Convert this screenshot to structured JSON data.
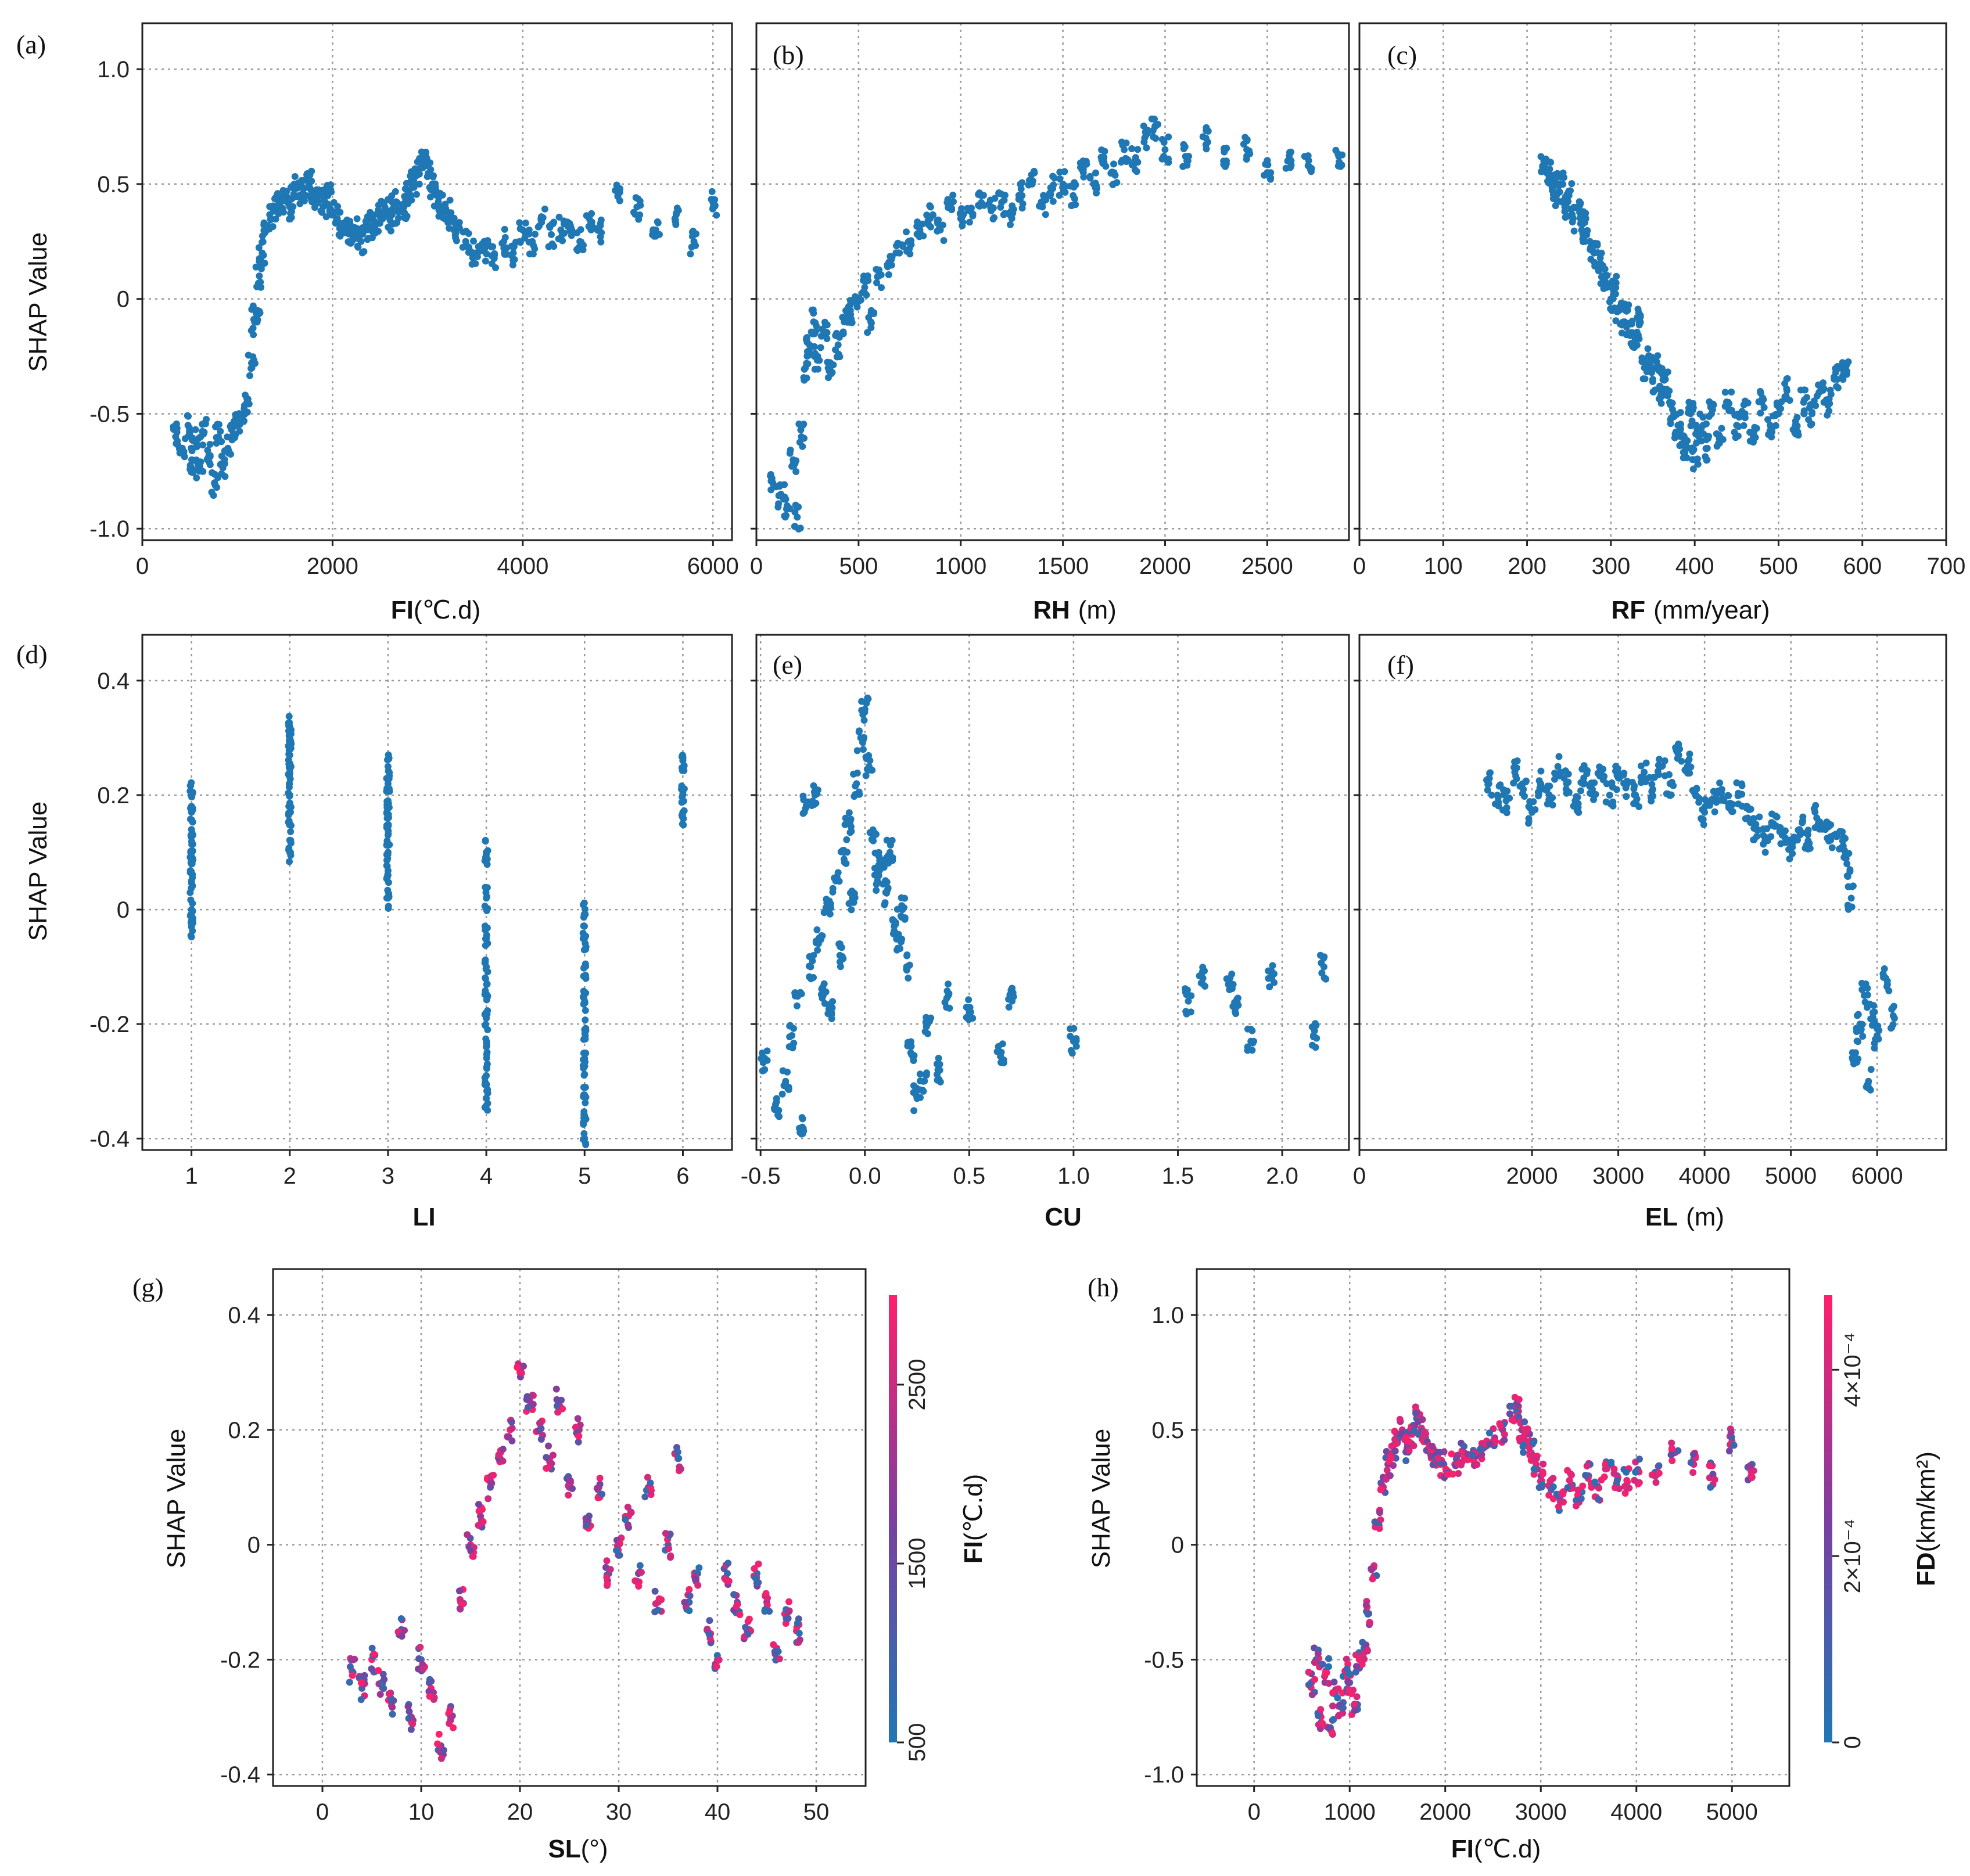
{
  "chart_data": [
    {
      "panel": "(a)",
      "type": "scatter",
      "xlabel_main": "FI",
      "xlabel_unit": "(℃.d)",
      "ylabel": "SHAP Value",
      "xlim": [
        0,
        6200
      ],
      "ylim": [
        -1.05,
        1.2
      ],
      "xticks": [
        0,
        2000,
        4000,
        6000
      ],
      "yticks": [
        1.0,
        0.5,
        0,
        -0.5,
        -1.0
      ],
      "ytick_labels": [
        "1.0",
        "0.5",
        "0",
        "-0.5",
        "-1.0"
      ],
      "color": "#1f77b4",
      "x": [
        350,
        420,
        480,
        520,
        560,
        600,
        650,
        700,
        760,
        800,
        850,
        900,
        950,
        1000,
        1050,
        1100,
        1150,
        1180,
        1200,
        1230,
        1260,
        1300,
        1350,
        1400,
        1450,
        1500,
        1550,
        1600,
        1650,
        1700,
        1750,
        1800,
        1850,
        1900,
        1950,
        2000,
        2050,
        2100,
        2150,
        2200,
        2250,
        2300,
        2350,
        2400,
        2450,
        2500,
        2550,
        2600,
        2650,
        2700,
        2750,
        2800,
        2850,
        2900,
        2950,
        3000,
        3050,
        3100,
        3150,
        3200,
        3250,
        3300,
        3400,
        3500,
        3600,
        3700,
        3800,
        3900,
        4000,
        4100,
        4200,
        4300,
        4400,
        4500,
        4600,
        4700,
        4800,
        5000,
        5200,
        5400,
        5600,
        5800,
        6000
      ],
      "y": [
        -0.6,
        -0.65,
        -0.55,
        -0.7,
        -0.62,
        -0.75,
        -0.58,
        -0.68,
        -0.8,
        -0.6,
        -0.72,
        -0.65,
        -0.6,
        -0.55,
        -0.5,
        -0.45,
        -0.3,
        -0.1,
        -0.05,
        0.1,
        0.2,
        0.3,
        0.35,
        0.4,
        0.42,
        0.45,
        0.4,
        0.5,
        0.45,
        0.48,
        0.5,
        0.45,
        0.42,
        0.4,
        0.45,
        0.38,
        0.35,
        0.32,
        0.3,
        0.28,
        0.3,
        0.25,
        0.3,
        0.35,
        0.32,
        0.38,
        0.4,
        0.35,
        0.42,
        0.38,
        0.4,
        0.45,
        0.5,
        0.55,
        0.6,
        0.58,
        0.5,
        0.45,
        0.4,
        0.38,
        0.35,
        0.3,
        0.25,
        0.2,
        0.22,
        0.18,
        0.25,
        0.2,
        0.3,
        0.25,
        0.35,
        0.28,
        0.3,
        0.32,
        0.25,
        0.35,
        0.3,
        0.45,
        0.4,
        0.3,
        0.35,
        0.25,
        0.42
      ]
    },
    {
      "panel": "(b)",
      "type": "scatter",
      "xlabel_main": "RH",
      "xlabel_unit": "(m)",
      "ylabel": "",
      "xlim": [
        0,
        2900
      ],
      "ylim": [
        -1.05,
        1.2
      ],
      "xticks": [
        0,
        500,
        1000,
        1500,
        2000,
        2500
      ],
      "yticks": [
        1.0,
        0.5,
        0,
        -0.5,
        -1.0
      ],
      "color": "#1f77b4",
      "x": [
        80,
        120,
        150,
        180,
        200,
        220,
        240,
        260,
        280,
        300,
        330,
        360,
        400,
        430,
        460,
        500,
        530,
        560,
        600,
        650,
        700,
        750,
        800,
        850,
        900,
        950,
        1000,
        1050,
        1100,
        1150,
        1200,
        1250,
        1300,
        1350,
        1400,
        1450,
        1500,
        1550,
        1600,
        1650,
        1700,
        1750,
        1800,
        1850,
        1900,
        1950,
        2000,
        2100,
        2200,
        2300,
        2400,
        2500,
        2600,
        2700,
        2850
      ],
      "y": [
        -0.8,
        -0.85,
        -0.9,
        -0.7,
        -0.95,
        -0.6,
        -0.3,
        -0.2,
        -0.1,
        -0.25,
        -0.15,
        -0.3,
        -0.2,
        -0.1,
        -0.05,
        0.0,
        0.05,
        -0.1,
        0.1,
        0.15,
        0.2,
        0.25,
        0.3,
        0.35,
        0.3,
        0.4,
        0.35,
        0.38,
        0.45,
        0.4,
        0.42,
        0.35,
        0.45,
        0.5,
        0.4,
        0.48,
        0.5,
        0.45,
        0.55,
        0.5,
        0.6,
        0.55,
        0.65,
        0.6,
        0.7,
        0.75,
        0.65,
        0.62,
        0.7,
        0.6,
        0.65,
        0.55,
        0.6,
        0.58,
        0.62
      ]
    },
    {
      "panel": "(c)",
      "type": "scatter",
      "xlabel_main": "RF",
      "xlabel_unit": "(mm/year)",
      "ylabel": "",
      "xlim": [
        0,
        700
      ],
      "ylim": [
        -1.05,
        1.2
      ],
      "xticks": [
        0,
        100,
        200,
        300,
        400,
        500,
        600,
        700
      ],
      "yticks": [
        1.0,
        0.5,
        0,
        -0.5,
        -1.0
      ],
      "color": "#1f77b4",
      "x": [
        220,
        225,
        230,
        235,
        240,
        245,
        250,
        255,
        260,
        265,
        270,
        275,
        280,
        285,
        290,
        295,
        300,
        305,
        310,
        315,
        320,
        325,
        330,
        335,
        340,
        345,
        350,
        355,
        360,
        365,
        370,
        375,
        380,
        385,
        390,
        395,
        400,
        405,
        410,
        415,
        420,
        430,
        440,
        450,
        460,
        470,
        480,
        490,
        500,
        510,
        520,
        530,
        540,
        550,
        560,
        570,
        580
      ],
      "y": [
        0.6,
        0.55,
        0.5,
        0.45,
        0.5,
        0.4,
        0.45,
        0.35,
        0.4,
        0.3,
        0.35,
        0.25,
        0.2,
        0.15,
        0.1,
        0.05,
        0.0,
        0.05,
        -0.05,
        -0.1,
        -0.05,
        -0.15,
        -0.2,
        -0.1,
        -0.3,
        -0.25,
        -0.35,
        -0.3,
        -0.4,
        -0.35,
        -0.45,
        -0.5,
        -0.55,
        -0.6,
        -0.65,
        -0.5,
        -0.7,
        -0.6,
        -0.55,
        -0.65,
        -0.5,
        -0.6,
        -0.45,
        -0.55,
        -0.5,
        -0.6,
        -0.45,
        -0.55,
        -0.5,
        -0.4,
        -0.55,
        -0.45,
        -0.5,
        -0.4,
        -0.45,
        -0.35,
        -0.3
      ]
    },
    {
      "panel": "(d)",
      "type": "scatter",
      "xlabel_main": "LI",
      "xlabel_unit": "",
      "ylabel": "SHAP Value",
      "xlim": [
        0.5,
        6.5
      ],
      "ylim": [
        -0.42,
        0.48
      ],
      "xticks": [
        1,
        2,
        3,
        4,
        5,
        6
      ],
      "yticks": [
        0.4,
        0.2,
        0,
        -0.2,
        -0.4
      ],
      "ytick_labels": [
        "0.4",
        "0.2",
        "0",
        "-0.2",
        "-0.4"
      ],
      "color": "#1f77b4",
      "x": [
        1,
        1,
        1,
        1,
        1,
        1,
        1,
        1,
        2,
        2,
        2,
        2,
        2,
        2,
        2,
        3,
        3,
        3,
        3,
        3,
        3,
        3,
        3,
        4,
        4,
        4,
        4,
        4,
        4,
        4,
        4,
        4,
        5,
        5,
        5,
        5,
        5,
        5,
        5,
        5,
        5,
        6,
        6,
        6
      ],
      "y": [
        -0.03,
        0.0,
        0.05,
        0.08,
        0.1,
        0.14,
        0.17,
        0.2,
        0.1,
        0.15,
        0.2,
        0.24,
        0.27,
        0.3,
        0.32,
        0.02,
        0.06,
        0.1,
        0.13,
        0.16,
        0.19,
        0.22,
        0.25,
        -0.33,
        -0.29,
        -0.24,
        -0.19,
        -0.15,
        -0.1,
        -0.05,
        0.02,
        0.1,
        -0.4,
        -0.36,
        -0.31,
        -0.26,
        -0.21,
        -0.16,
        -0.1,
        -0.05,
        -0.01,
        0.17,
        0.21,
        0.26
      ]
    },
    {
      "panel": "(e)",
      "type": "scatter",
      "xlabel_main": "CU",
      "xlabel_unit": "",
      "ylabel": "",
      "xlim": [
        -0.52,
        2.32
      ],
      "ylim": [
        -0.42,
        0.48
      ],
      "xticks": [
        -0.5,
        0.0,
        0.5,
        1.0,
        1.5,
        2.0
      ],
      "yticks": [
        0.4,
        0.2,
        0,
        -0.2,
        -0.4
      ],
      "color": "#1f77b4",
      "x": [
        -0.48,
        -0.42,
        -0.38,
        -0.35,
        -0.32,
        -0.3,
        -0.28,
        -0.26,
        -0.24,
        -0.22,
        -0.2,
        -0.18,
        -0.16,
        -0.14,
        -0.12,
        -0.1,
        -0.08,
        -0.06,
        -0.04,
        -0.02,
        0.0,
        0.02,
        0.04,
        0.06,
        0.08,
        0.1,
        0.12,
        0.14,
        0.16,
        0.18,
        0.2,
        0.22,
        0.25,
        0.28,
        0.3,
        0.35,
        0.4,
        0.5,
        0.65,
        0.7,
        1.0,
        1.55,
        1.62,
        1.75,
        1.78,
        1.85,
        1.95,
        2.15,
        2.2
      ],
      "y": [
        -0.26,
        -0.35,
        -0.3,
        -0.22,
        -0.15,
        -0.38,
        0.18,
        -0.1,
        0.2,
        -0.05,
        -0.15,
        0.0,
        -0.18,
        0.05,
        -0.08,
        0.1,
        0.15,
        0.02,
        0.22,
        0.3,
        0.35,
        0.25,
        0.12,
        0.05,
        0.08,
        0.03,
        0.1,
        -0.02,
        -0.05,
        0.0,
        -0.1,
        -0.25,
        -0.33,
        -0.3,
        -0.2,
        -0.28,
        -0.15,
        -0.18,
        -0.25,
        -0.15,
        -0.23,
        -0.16,
        -0.12,
        -0.12,
        -0.17,
        -0.23,
        -0.12,
        -0.22,
        -0.1
      ]
    },
    {
      "panel": "(f)",
      "type": "scatter",
      "xlabel_main": "EL",
      "xlabel_unit": "(m)",
      "ylabel": "",
      "xlim": [
        0,
        6800
      ],
      "ylim": [
        -0.42,
        0.48
      ],
      "xticks": [
        0,
        2000,
        3000,
        4000,
        5000,
        6000
      ],
      "yticks": [
        0.4,
        0.2,
        0,
        -0.2,
        -0.4
      ],
      "color": "#1f77b4",
      "x": [
        1500,
        1600,
        1700,
        1800,
        1900,
        2000,
        2100,
        2200,
        2300,
        2400,
        2500,
        2600,
        2700,
        2800,
        2900,
        3000,
        3100,
        3200,
        3300,
        3400,
        3500,
        3600,
        3700,
        3800,
        3900,
        4000,
        4100,
        4200,
        4300,
        4400,
        4500,
        4600,
        4700,
        4800,
        4900,
        5000,
        5100,
        5200,
        5300,
        5400,
        5500,
        5600,
        5650,
        5700,
        5750,
        5800,
        5850,
        5900,
        5950,
        6000,
        6100,
        6200
      ],
      "y": [
        0.22,
        0.2,
        0.19,
        0.24,
        0.21,
        0.17,
        0.22,
        0.2,
        0.25,
        0.22,
        0.19,
        0.23,
        0.21,
        0.24,
        0.2,
        0.23,
        0.22,
        0.2,
        0.24,
        0.21,
        0.25,
        0.22,
        0.27,
        0.25,
        0.2,
        0.17,
        0.19,
        0.21,
        0.18,
        0.2,
        0.16,
        0.14,
        0.12,
        0.15,
        0.13,
        0.11,
        0.14,
        0.12,
        0.16,
        0.14,
        0.13,
        0.12,
        0.08,
        0.02,
        -0.25,
        -0.2,
        -0.15,
        -0.3,
        -0.18,
        -0.22,
        -0.12,
        -0.19
      ]
    },
    {
      "panel": "(g)",
      "type": "scatter",
      "xlabel_main": "SL",
      "xlabel_unit": "(°)",
      "ylabel": "SHAP Value",
      "xlim": [
        -5,
        55
      ],
      "ylim": [
        -0.42,
        0.48
      ],
      "xticks": [
        0,
        10,
        20,
        30,
        40,
        50
      ],
      "yticks": [
        0.4,
        0.2,
        0,
        -0.2,
        -0.4
      ],
      "ytick_labels": [
        "0.4",
        "0.2",
        "0",
        "-0.2",
        "-0.4"
      ],
      "colorbar": {
        "label_main": "FI",
        "label_unit": "(℃.d)",
        "ticks": [
          500,
          1500,
          2500
        ],
        "range": [
          500,
          3000
        ],
        "low": "#1f77b4",
        "mid": "#7b3fa0",
        "high": "#ff1f6b"
      },
      "x": [
        3,
        4,
        5,
        6,
        7,
        8,
        9,
        10,
        11,
        12,
        13,
        14,
        15,
        16,
        17,
        18,
        19,
        20,
        21,
        22,
        23,
        24,
        25,
        26,
        27,
        28,
        29,
        30,
        31,
        32,
        33,
        34,
        35,
        36,
        37,
        38,
        39,
        40,
        41,
        42,
        43,
        44,
        45,
        46,
        47,
        48
      ],
      "y": [
        -0.22,
        -0.25,
        -0.2,
        -0.24,
        -0.28,
        -0.15,
        -0.3,
        -0.2,
        -0.25,
        -0.35,
        -0.3,
        -0.1,
        0.0,
        0.05,
        0.1,
        0.15,
        0.2,
        0.3,
        0.25,
        0.2,
        0.15,
        0.25,
        0.1,
        0.2,
        0.05,
        0.1,
        -0.05,
        0.0,
        0.05,
        -0.05,
        0.1,
        -0.1,
        0.0,
        0.15,
        -0.1,
        -0.05,
        -0.15,
        -0.2,
        -0.05,
        -0.1,
        -0.15,
        -0.05,
        -0.1,
        -0.18,
        -0.12,
        -0.15
      ],
      "c": [
        2800,
        1000,
        2900,
        600,
        2600,
        1200,
        2200,
        800,
        3000,
        1500,
        900,
        2100,
        2700,
        1800,
        1300,
        2500,
        2900,
        3000,
        2200,
        1700,
        2800,
        2600,
        1900,
        2400,
        1400,
        2950,
        1100,
        2300,
        2700,
        1600,
        2100,
        2900,
        1000,
        2800,
        2500,
        700,
        2600,
        2900,
        800,
        1200,
        2400,
        600,
        1800,
        2700,
        900,
        2800
      ]
    },
    {
      "panel": "(h)",
      "type": "scatter",
      "xlabel_main": "FI",
      "xlabel_unit": "(℃.d)",
      "ylabel": "SHAP Value",
      "xlim": [
        -600,
        5600
      ],
      "ylim": [
        -1.05,
        1.2
      ],
      "xticks": [
        0,
        1000,
        2000,
        3000,
        4000,
        5000
      ],
      "yticks": [
        1.0,
        0.5,
        0,
        -0.5,
        -1.0
      ],
      "ytick_labels": [
        "1.0",
        "0.5",
        "0",
        "-0.5",
        "-1.0"
      ],
      "colorbar": {
        "label_main": "FD",
        "label_unit": "(km/km²)",
        "ticks": [
          "0",
          "2×10⁻⁴",
          "4×10⁻⁴"
        ],
        "range": [
          0,
          0.00048
        ],
        "low": "#1f77b4",
        "mid": "#7b3fa0",
        "high": "#ff1f6b"
      },
      "x": [
        600,
        650,
        700,
        750,
        800,
        850,
        900,
        950,
        1000,
        1050,
        1100,
        1150,
        1200,
        1250,
        1300,
        1350,
        1400,
        1450,
        1500,
        1550,
        1600,
        1650,
        1700,
        1750,
        1800,
        1850,
        1900,
        1950,
        2000,
        2100,
        2200,
        2300,
        2400,
        2500,
        2600,
        2700,
        2750,
        2800,
        2850,
        2900,
        2950,
        3000,
        3100,
        3200,
        3300,
        3400,
        3500,
        3600,
        3700,
        3800,
        3900,
        4000,
        4200,
        4400,
        4600,
        4800,
        5000,
        5200
      ],
      "y": [
        -0.6,
        -0.5,
        -0.75,
        -0.55,
        -0.8,
        -0.65,
        -0.7,
        -0.55,
        -0.6,
        -0.7,
        -0.5,
        -0.45,
        -0.3,
        -0.1,
        0.1,
        0.25,
        0.35,
        0.4,
        0.45,
        0.5,
        0.42,
        0.48,
        0.55,
        0.5,
        0.45,
        0.4,
        0.38,
        0.35,
        0.3,
        0.35,
        0.4,
        0.38,
        0.42,
        0.45,
        0.5,
        0.55,
        0.6,
        0.5,
        0.45,
        0.4,
        0.35,
        0.3,
        0.25,
        0.2,
        0.28,
        0.22,
        0.3,
        0.25,
        0.35,
        0.3,
        0.28,
        0.32,
        0.3,
        0.4,
        0.35,
        0.3,
        0.45,
        0.3
      ],
      "c": [
        0.0004,
        0.0001,
        0.00045,
        0.0002,
        0.00042,
        5e-05,
        0.0003,
        0.00044,
        0.0001,
        0.00038,
        0.00046,
        2e-05,
        0.0002,
        0.0004,
        0.0001,
        0.00045,
        0.00025,
        0.00042,
        8e-05,
        0.0004,
        0.0003,
        0.00044,
        0.00012,
        0.00047,
        0.0002,
        0.00041,
        6e-05,
        0.00043,
        0.0003,
        0.00045,
        0.00015,
        0.0004,
        0.0002,
        0.00046,
        0.0001,
        0.00044,
        0.00047,
        0.0003,
        0.00041,
        5e-05,
        0.00043,
        0.0002,
        0.00045,
        0.0001,
        0.00044,
        0.00042,
        3e-05,
        0.00046,
        0.0004,
        8e-05,
        0.00043,
        0.00045,
        0.0001,
        0.00044,
        0.0004,
        2e-05,
        0.00046,
        0.0004
      ]
    }
  ]
}
